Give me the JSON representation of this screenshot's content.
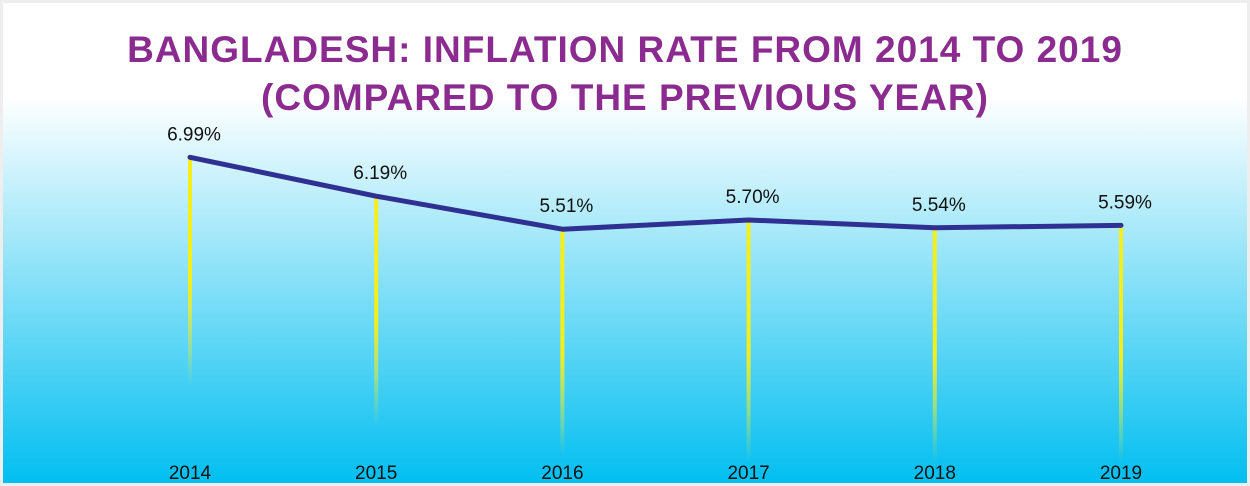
{
  "chart_data": {
    "type": "line",
    "title": "BANGLADESH: INFLATION RATE FROM 2014 TO 2019",
    "subtitle": "(COMPARED TO THE PREVIOUS YEAR)",
    "categories": [
      "2014",
      "2015",
      "2016",
      "2017",
      "2018",
      "2019"
    ],
    "values": [
      6.99,
      6.19,
      5.51,
      5.7,
      5.54,
      5.59
    ],
    "value_labels": [
      "6.99%",
      "6.19%",
      "5.51%",
      "5.70%",
      "5.54%",
      "5.59%"
    ],
    "color": "#2e3192",
    "title_color": "#8b2b8f"
  }
}
